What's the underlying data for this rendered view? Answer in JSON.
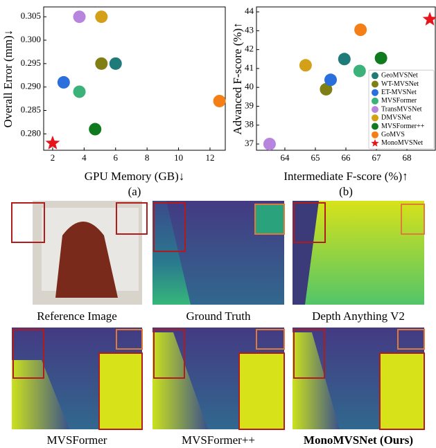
{
  "chart_data": [
    {
      "type": "scatter",
      "caption": "(a)",
      "x_label": "GPU Memory (GB)↓",
      "y_label": "Overall Error (mm)↓",
      "xlim": [
        1.43,
        12.97
      ],
      "ylim": [
        0.2765,
        0.3071
      ],
      "xticks": [
        2,
        4,
        6,
        8,
        10,
        12
      ],
      "yticks": [
        {
          "value": 0.28,
          "label": "0.280"
        },
        0.285,
        {
          "value": 0.29,
          "label": "0.290"
        },
        0.295,
        {
          "value": 0.3,
          "label": "0.300"
        },
        0.305
      ],
      "series": [
        {
          "color": "#1f7a7a",
          "marker": "circle",
          "x": [
            6.0
          ],
          "values": [
            0.295
          ]
        },
        {
          "color": "#7f7f14",
          "marker": "circle",
          "x": [
            5.1
          ],
          "values": [
            0.295
          ]
        },
        {
          "color": "#2a6fdb",
          "marker": "circle",
          "x": [
            2.7
          ],
          "values": [
            0.291
          ]
        },
        {
          "color": "#3cb27a",
          "marker": "circle",
          "x": [
            3.7
          ],
          "values": [
            0.289
          ]
        },
        {
          "color": "#b784de",
          "marker": "circle",
          "x": [
            3.7
          ],
          "values": [
            0.305
          ]
        },
        {
          "color": "#d4a017",
          "marker": "circle",
          "x": [
            5.1
          ],
          "values": [
            0.305
          ]
        },
        {
          "color": "#0f7a1e",
          "marker": "circle",
          "x": [
            4.7
          ],
          "values": [
            0.281
          ]
        },
        {
          "color": "#f57f17",
          "marker": "circle",
          "x": [
            12.6
          ],
          "values": [
            0.287
          ]
        },
        {
          "color": "#e8141b",
          "marker": "star",
          "x": [
            2.0
          ],
          "values": [
            0.278
          ]
        }
      ]
    },
    {
      "type": "scatter",
      "caption": "(b)",
      "x_label": "Intermediate F-score (%)↑",
      "y_label": "Advanced F-score (%)↑",
      "xlim": [
        63.07,
        68.93
      ],
      "ylim": [
        36.67,
        44.26
      ],
      "xticks": [
        64,
        65,
        66,
        67,
        68
      ],
      "yticks": [
        37,
        38,
        39,
        40,
        41,
        42,
        43,
        44
      ],
      "legend": "lower right",
      "series": [
        {
          "name": "GeoMVSNet",
          "color": "#1f7a7a",
          "marker": "circle",
          "x": [
            65.95
          ],
          "values": [
            41.5
          ]
        },
        {
          "name": "WT-MVSNet",
          "color": "#7f7f14",
          "marker": "circle",
          "x": [
            65.35
          ],
          "values": [
            39.9
          ]
        },
        {
          "name": "ET-MVSNet",
          "color": "#2a6fdb",
          "marker": "circle",
          "x": [
            65.5
          ],
          "values": [
            40.4
          ]
        },
        {
          "name": "MVSFormer",
          "color": "#3cb27a",
          "marker": "circle",
          "x": [
            66.45
          ],
          "values": [
            40.87
          ]
        },
        {
          "name": "TransMVSNet",
          "color": "#b784de",
          "marker": "circle",
          "x": [
            63.5
          ],
          "values": [
            37.0
          ]
        },
        {
          "name": "DMVSNet",
          "color": "#d4a017",
          "marker": "circle",
          "x": [
            64.68
          ],
          "values": [
            41.17
          ]
        },
        {
          "name": "MVSFormer++",
          "color": "#0f7a1e",
          "marker": "circle",
          "x": [
            67.15
          ],
          "values": [
            41.55
          ]
        },
        {
          "name": "GoMVS",
          "color": "#f57f17",
          "marker": "circle",
          "x": [
            66.48
          ],
          "values": [
            43.05
          ]
        },
        {
          "name": "MonoMVSNet",
          "color": "#e8141b",
          "marker": "star",
          "x": [
            68.75
          ],
          "values": [
            43.6
          ]
        }
      ]
    }
  ],
  "panels": [
    {
      "caption": "Reference Image"
    },
    {
      "caption": "Ground Truth"
    },
    {
      "caption": "Depth Anything V2"
    },
    {
      "caption": "MVSFormer"
    },
    {
      "caption": "MVSFormer++"
    },
    {
      "caption": "MonoMVSNet (Ours)"
    }
  ]
}
